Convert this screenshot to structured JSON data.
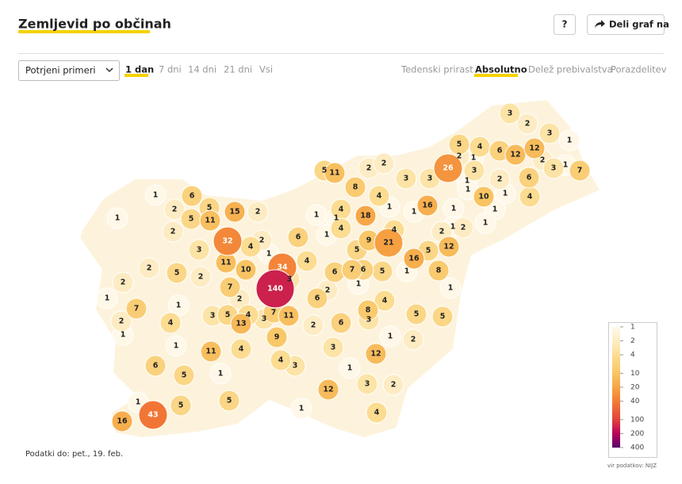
{
  "header": {
    "title": "Zemljevid po občinah",
    "help_button": "?",
    "share_button": "Deli graf na"
  },
  "controls": {
    "dropdown": "Potrjeni primeri",
    "periods": [
      "1 dan",
      "7 dni",
      "14 dni",
      "21 dni",
      "Vsi"
    ],
    "views": [
      "Tedenski prirast",
      "Absolutno",
      "Delež prebivalstva",
      "Porazdelitev"
    ]
  },
  "map": {
    "values": [
      3,
      2,
      3,
      1,
      5,
      4,
      6,
      12,
      12,
      2,
      1,
      2,
      3,
      1,
      7,
      26,
      3,
      1,
      2,
      6,
      5,
      11,
      2,
      2,
      3,
      3,
      8,
      4,
      16,
      1,
      10,
      1,
      4,
      1,
      6,
      2,
      5,
      15,
      2,
      1,
      5,
      11,
      1,
      4,
      18,
      1,
      1,
      1,
      1,
      2,
      1,
      4,
      1,
      6,
      4,
      2,
      1,
      2,
      1,
      32,
      2,
      4,
      3,
      9,
      21,
      16,
      5,
      12,
      11,
      4,
      34,
      5,
      2,
      5,
      2,
      10,
      6,
      7,
      6,
      5,
      1,
      8,
      2,
      7,
      140,
      3,
      2,
      6,
      1,
      1,
      1,
      7,
      1,
      2,
      4,
      8,
      2,
      1,
      4,
      3,
      5,
      13,
      4,
      3,
      7,
      11,
      2,
      6,
      3,
      5,
      5,
      1,
      11,
      4,
      9,
      3,
      1,
      12,
      2,
      6,
      5,
      1,
      4,
      3,
      1,
      3,
      2,
      12,
      1,
      5,
      5,
      1,
      4,
      16,
      43,
      1
    ],
    "legend": {
      "ticks": [
        1,
        2,
        4,
        10,
        20,
        40,
        100,
        200,
        400
      ],
      "colors": [
        "#fff8e8",
        "#fdecc3",
        "#fbdc91",
        "#f8c463",
        "#f6a343",
        "#f27b35",
        "#e0403c",
        "#b5005d",
        "#4f0b6b"
      ],
      "log_scale": true
    }
  },
  "footer": {
    "date": "Podatki do: pet., 19. feb.",
    "source": "vir podatkov: NIJZ"
  }
}
